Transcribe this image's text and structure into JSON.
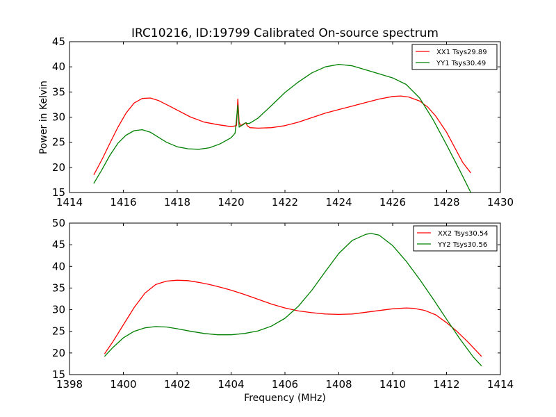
{
  "chart_data": [
    {
      "type": "line",
      "title": "IRC10216, ID:19799 Calibrated On-source spectrum",
      "xlabel": "",
      "ylabel": "Power in Kelvin",
      "xlim": [
        1414,
        1430
      ],
      "ylim": [
        15,
        45
      ],
      "xticks": [
        "1414",
        "1416",
        "1418",
        "1420",
        "1422",
        "1424",
        "1426",
        "1428",
        "1430"
      ],
      "yticks": [
        "15",
        "20",
        "25",
        "30",
        "35",
        "40",
        "45"
      ],
      "legend_position": "top-right",
      "series": [
        {
          "name": "XX1 Tsys29.89",
          "color": "#ff0000",
          "x": [
            1414.9,
            1415.2,
            1415.5,
            1415.8,
            1416.1,
            1416.4,
            1416.7,
            1417.0,
            1417.3,
            1417.6,
            1418.0,
            1418.5,
            1419.0,
            1419.5,
            1420.0,
            1420.2,
            1420.25,
            1420.3,
            1420.35,
            1420.45,
            1420.55,
            1420.6,
            1420.7,
            1421.0,
            1421.5,
            1422.0,
            1422.5,
            1423.0,
            1423.5,
            1424.0,
            1424.5,
            1425.0,
            1425.5,
            1426.0,
            1426.3,
            1426.6,
            1427.0,
            1427.3,
            1427.6,
            1428.0,
            1428.3,
            1428.6,
            1428.9
          ],
          "values": [
            18.5,
            21.5,
            24.8,
            28.0,
            30.8,
            32.8,
            33.7,
            33.8,
            33.3,
            32.5,
            31.4,
            30.0,
            29.0,
            28.5,
            28.1,
            28.3,
            33.6,
            29.0,
            28.3,
            28.6,
            28.9,
            28.3,
            27.9,
            27.8,
            27.9,
            28.3,
            29.0,
            29.9,
            30.8,
            31.5,
            32.2,
            32.9,
            33.6,
            34.1,
            34.2,
            34.0,
            33.2,
            32.0,
            30.2,
            27.0,
            24.0,
            21.0,
            18.9
          ]
        },
        {
          "name": "YY1 Tsys30.49",
          "color": "#008000",
          "x": [
            1414.9,
            1415.2,
            1415.5,
            1415.8,
            1416.1,
            1416.4,
            1416.7,
            1417.0,
            1417.3,
            1417.6,
            1418.0,
            1418.4,
            1418.8,
            1419.2,
            1419.6,
            1420.0,
            1420.15,
            1420.25,
            1420.3,
            1420.35,
            1420.45,
            1420.55,
            1420.6,
            1420.7,
            1421.0,
            1421.5,
            1422.0,
            1422.5,
            1423.0,
            1423.5,
            1424.0,
            1424.5,
            1425.0,
            1425.5,
            1426.0,
            1426.5,
            1427.0,
            1427.5,
            1428.0,
            1428.5,
            1428.9
          ],
          "values": [
            16.8,
            19.5,
            22.4,
            24.8,
            26.4,
            27.3,
            27.5,
            27.0,
            26.0,
            25.0,
            24.1,
            23.7,
            23.6,
            23.9,
            24.7,
            25.9,
            26.8,
            32.4,
            28.0,
            28.2,
            28.5,
            28.9,
            28.7,
            28.8,
            29.8,
            32.3,
            34.9,
            37.0,
            38.8,
            40.0,
            40.5,
            40.2,
            39.4,
            38.6,
            37.8,
            36.5,
            33.8,
            29.5,
            24.5,
            19.3,
            15.0
          ]
        }
      ]
    },
    {
      "type": "line",
      "title": "",
      "xlabel": "Frequency (MHz)",
      "ylabel": "",
      "xlim": [
        1398,
        1414
      ],
      "ylim": [
        15,
        50
      ],
      "xticks": [
        "1398",
        "1400",
        "1402",
        "1404",
        "1406",
        "1408",
        "1410",
        "1412",
        "1414"
      ],
      "yticks": [
        "15",
        "20",
        "25",
        "30",
        "35",
        "40",
        "45",
        "50"
      ],
      "legend_position": "top-right",
      "series": [
        {
          "name": "XX2 Tsys30.54",
          "color": "#ff0000",
          "x": [
            1399.3,
            1399.6,
            1400.0,
            1400.4,
            1400.8,
            1401.2,
            1401.6,
            1402.0,
            1402.4,
            1402.8,
            1403.2,
            1403.6,
            1404.0,
            1404.5,
            1405.0,
            1405.5,
            1406.0,
            1406.5,
            1407.0,
            1407.5,
            1408.0,
            1408.5,
            1409.0,
            1409.5,
            1410.0,
            1410.5,
            1410.8,
            1411.2,
            1411.6,
            1412.0,
            1412.4,
            1412.8,
            1413.3
          ],
          "values": [
            19.8,
            22.5,
            26.5,
            30.5,
            33.8,
            35.8,
            36.6,
            36.8,
            36.7,
            36.3,
            35.8,
            35.2,
            34.5,
            33.5,
            32.4,
            31.3,
            30.4,
            29.7,
            29.3,
            29.0,
            28.9,
            29.0,
            29.4,
            29.8,
            30.2,
            30.4,
            30.3,
            29.8,
            28.8,
            27.0,
            24.9,
            22.5,
            19.2
          ]
        },
        {
          "name": "YY2 Tsys30.56",
          "color": "#008000",
          "x": [
            1399.3,
            1399.6,
            1400.0,
            1400.4,
            1400.8,
            1401.2,
            1401.6,
            1402.0,
            1402.5,
            1403.0,
            1403.5,
            1404.0,
            1404.5,
            1405.0,
            1405.5,
            1406.0,
            1406.5,
            1407.0,
            1407.5,
            1408.0,
            1408.5,
            1409.0,
            1409.2,
            1409.5,
            1410.0,
            1410.5,
            1411.0,
            1411.5,
            1412.0,
            1412.5,
            1413.0,
            1413.3
          ],
          "values": [
            19.2,
            21.2,
            23.5,
            25.0,
            25.8,
            26.1,
            26.0,
            25.6,
            25.0,
            24.5,
            24.2,
            24.2,
            24.5,
            25.1,
            26.2,
            28.0,
            30.8,
            34.5,
            38.8,
            43.0,
            46.0,
            47.4,
            47.6,
            47.2,
            44.8,
            41.2,
            37.0,
            32.5,
            27.8,
            23.2,
            19.0,
            17.0
          ]
        }
      ]
    }
  ]
}
